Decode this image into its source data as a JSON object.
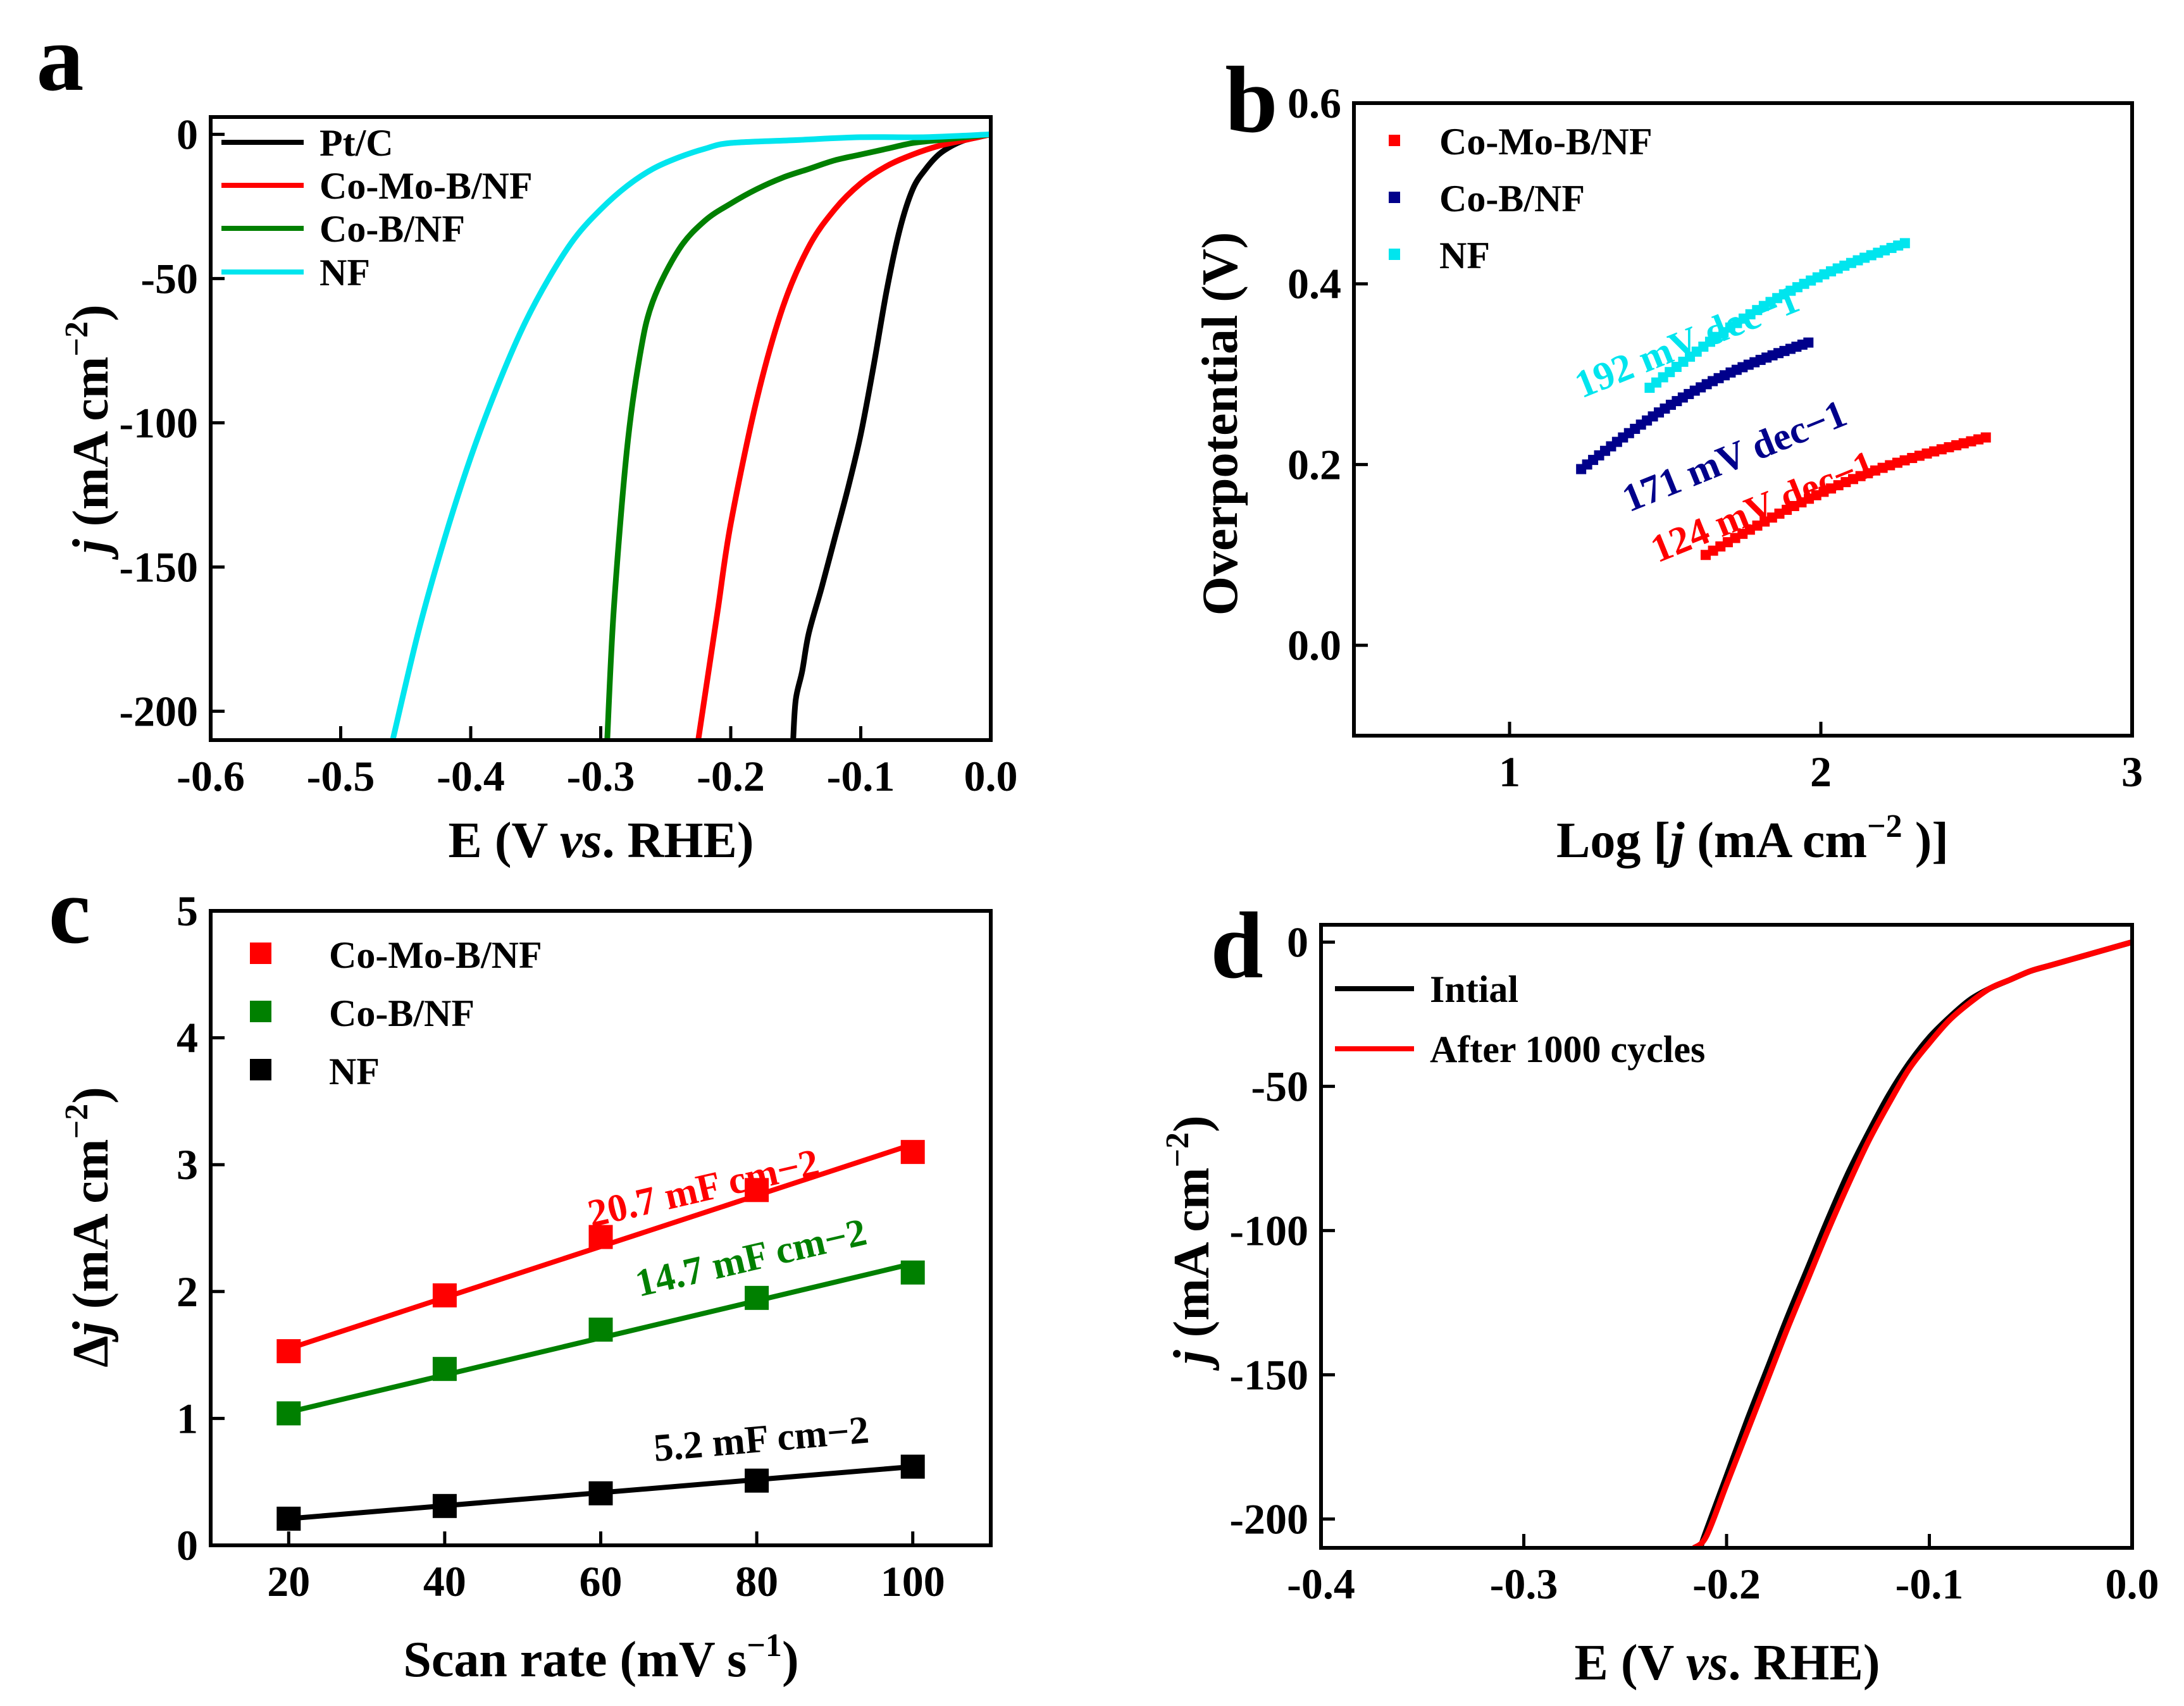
{
  "figure": {
    "colors": {
      "Pt/C": "#000000",
      "Co-Mo-B/NF": "#ff0000",
      "Co-B/NF": "#008000",
      "NF_cyan": "#00e5ee",
      "NF_navy": "#00008b",
      "NF_black": "#000000"
    }
  },
  "chart_data": [
    {
      "panel": "a",
      "type": "line",
      "xlabel": "E (V vs. RHE)",
      "ylabel": "j (mA cm−2)",
      "xlim": [
        -0.6,
        0.0
      ],
      "ylim": [
        -210,
        6
      ],
      "xticks": [
        -0.6,
        -0.5,
        -0.4,
        -0.3,
        -0.2,
        -0.1,
        0.0
      ],
      "xtick_labels": [
        "-0.6",
        "-0.5",
        "-0.4",
        "-0.3",
        "-0.2",
        "-0.1",
        "0.0"
      ],
      "yticks": [
        0,
        -50,
        -100,
        -150,
        -200
      ],
      "ytick_labels": [
        "0",
        "-50",
        "-100",
        "-150",
        "-200"
      ],
      "legend": [
        "Pt/C",
        "Co-Mo-B/NF",
        "Co-B/NF",
        "NF"
      ],
      "legend_position": "top-left",
      "series": [
        {
          "name": "Pt/C",
          "color": "#000000",
          "x": [
            0.0,
            -0.01,
            -0.02,
            -0.03,
            -0.04,
            -0.05,
            -0.06,
            -0.07,
            -0.08,
            -0.09,
            -0.1,
            -0.11,
            -0.12,
            -0.13,
            -0.14,
            -0.145,
            -0.15,
            -0.152
          ],
          "y": [
            0,
            -1,
            -2,
            -4,
            -7,
            -12,
            -19,
            -33,
            -54,
            -80,
            -104,
            -123,
            -140,
            -157,
            -173,
            -186,
            -196,
            -210
          ]
        },
        {
          "name": "Co-Mo-B/NF",
          "color": "#ff0000",
          "x": [
            0.0,
            -0.02,
            -0.04,
            -0.06,
            -0.08,
            -0.1,
            -0.12,
            -0.14,
            -0.16,
            -0.18,
            -0.2,
            -0.21,
            -0.22,
            -0.225
          ],
          "y": [
            0,
            -2,
            -4,
            -7,
            -11,
            -17,
            -26,
            -39,
            -60,
            -92,
            -135,
            -165,
            -195,
            -210
          ]
        },
        {
          "name": "Co-B/NF",
          "color": "#008000",
          "x": [
            0.0,
            -0.02,
            -0.04,
            -0.06,
            -0.08,
            -0.1,
            -0.12,
            -0.14,
            -0.16,
            -0.18,
            -0.2,
            -0.22,
            -0.24,
            -0.26,
            -0.27,
            -0.28,
            -0.29,
            -0.295
          ],
          "y": [
            0,
            -1,
            -2,
            -3,
            -5,
            -7,
            -9,
            -12,
            -15,
            -19,
            -24,
            -30,
            -40,
            -58,
            -77,
            -110,
            -165,
            -210
          ]
        },
        {
          "name": "NF",
          "color": "#00e5ee",
          "x": [
            0.0,
            -0.05,
            -0.1,
            -0.15,
            -0.2,
            -0.22,
            -0.24,
            -0.26,
            -0.28,
            -0.3,
            -0.32,
            -0.34,
            -0.36,
            -0.38,
            -0.4,
            -0.42,
            -0.44,
            -0.46
          ],
          "y": [
            0,
            -1,
            -1,
            -2,
            -3,
            -5,
            -8,
            -12,
            -18,
            -26,
            -36,
            -50,
            -67,
            -88,
            -112,
            -140,
            -172,
            -210
          ]
        }
      ]
    },
    {
      "panel": "b",
      "type": "scatter",
      "xlabel": "Log [j (mA cm−2 )]",
      "ylabel": "Overpotential (V)",
      "xlim": [
        0.5,
        3.0
      ],
      "ylim": [
        -0.1,
        0.6
      ],
      "xticks": [
        1,
        2,
        3
      ],
      "xtick_labels": [
        "1",
        "2",
        "3"
      ],
      "yticks": [
        0.0,
        0.2,
        0.4,
        0.6
      ],
      "ytick_labels": [
        "0.0",
        "0.2",
        "0.4",
        "0.6"
      ],
      "legend": [
        "Co-Mo-B/NF",
        "Co-B/NF",
        "NF"
      ],
      "legend_position": "top-left",
      "annotations": [
        "192 mV dec−1",
        "171 mV dec−1",
        "124 mV dec−1"
      ],
      "series": [
        {
          "name": "Co-Mo-B/NF",
          "color": "#ff0000",
          "x_start": 1.63,
          "x_end": 2.53,
          "y_start": 0.1,
          "y_end": 0.23
        },
        {
          "name": "Co-B/NF",
          "color": "#00008b",
          "x_start": 1.23,
          "x_end": 1.96,
          "y_start": 0.195,
          "y_end": 0.335
        },
        {
          "name": "NF",
          "color": "#00e5ee",
          "x_start": 1.45,
          "x_end": 2.27,
          "y_start": 0.285,
          "y_end": 0.445
        }
      ]
    },
    {
      "panel": "c",
      "type": "scatter",
      "xlabel": "Scan rate (mV s−1)",
      "ylabel": "Δj (mA cm−2)",
      "xlim": [
        10,
        110
      ],
      "ylim": [
        0,
        5
      ],
      "xticks": [
        20,
        40,
        60,
        80,
        100
      ],
      "xtick_labels": [
        "20",
        "40",
        "60",
        "80",
        "100"
      ],
      "yticks": [
        0,
        1,
        2,
        3,
        4,
        5
      ],
      "ytick_labels": [
        "0",
        "1",
        "2",
        "3",
        "4",
        "5"
      ],
      "legend": [
        "Co-Mo-B/NF",
        "Co-B/NF",
        "NF"
      ],
      "legend_position": "top-left",
      "annotations": [
        "20.7 mF cm−2",
        "14.7 mF cm−2",
        "5.2 mF cm−2"
      ],
      "x": [
        20,
        40,
        60,
        80,
        100
      ],
      "series": [
        {
          "name": "Co-Mo-B/NF",
          "color": "#ff0000",
          "values": [
            1.53,
            1.97,
            2.43,
            2.8,
            3.1
          ],
          "fit": [
            1.55,
            3.16
          ]
        },
        {
          "name": "Co-B/NF",
          "color": "#008000",
          "values": [
            1.04,
            1.39,
            1.7,
            1.95,
            2.15
          ],
          "fit": [
            1.05,
            2.22
          ]
        },
        {
          "name": "NF",
          "color": "#000000",
          "values": [
            0.21,
            0.31,
            0.41,
            0.51,
            0.62
          ],
          "fit": [
            0.21,
            0.62
          ]
        }
      ]
    },
    {
      "panel": "d",
      "type": "line",
      "xlabel": "E (V vs. RHE)",
      "ylabel": "j (mA cm−2)",
      "xlim": [
        -0.4,
        0.0
      ],
      "ylim": [
        -210,
        6
      ],
      "xticks": [
        -0.4,
        -0.3,
        -0.2,
        -0.1,
        0.0
      ],
      "xtick_labels": [
        "-0.4",
        "-0.3",
        "-0.2",
        "-0.1",
        "0.0"
      ],
      "yticks": [
        0,
        -50,
        -100,
        -150,
        -200
      ],
      "ytick_labels": [
        "0",
        "-50",
        "-100",
        "-150",
        "-200"
      ],
      "legend": [
        "Intial",
        "After 1000 cycles"
      ],
      "legend_position": "top-left",
      "series": [
        {
          "name": "Intial",
          "color": "#000000",
          "x": [
            0.0,
            -0.01,
            -0.02,
            -0.03,
            -0.04,
            -0.05,
            -0.06,
            -0.07,
            -0.08,
            -0.09,
            -0.1,
            -0.11,
            -0.12,
            -0.13,
            -0.14,
            -0.15,
            -0.16,
            -0.17,
            -0.18,
            -0.19,
            -0.2,
            -0.21,
            -0.213
          ],
          "y": [
            0,
            -2,
            -4,
            -6,
            -8,
            -10,
            -13,
            -16,
            -20,
            -26,
            -33,
            -42,
            -53,
            -66,
            -80,
            -96,
            -113,
            -130,
            -148,
            -166,
            -185,
            -204,
            -210
          ]
        },
        {
          "name": "After 1000 cycles",
          "color": "#ff0000",
          "x": [
            0.0,
            -0.01,
            -0.02,
            -0.03,
            -0.04,
            -0.05,
            -0.06,
            -0.07,
            -0.08,
            -0.09,
            -0.1,
            -0.11,
            -0.12,
            -0.13,
            -0.14,
            -0.15,
            -0.16,
            -0.17,
            -0.18,
            -0.19,
            -0.2,
            -0.21,
            -0.216
          ],
          "y": [
            0,
            -2,
            -4,
            -6,
            -8,
            -10,
            -13,
            -16,
            -21,
            -27,
            -35,
            -44,
            -56,
            -69,
            -84,
            -100,
            -117,
            -134,
            -152,
            -170,
            -188,
            -206,
            -210
          ]
        }
      ]
    }
  ]
}
